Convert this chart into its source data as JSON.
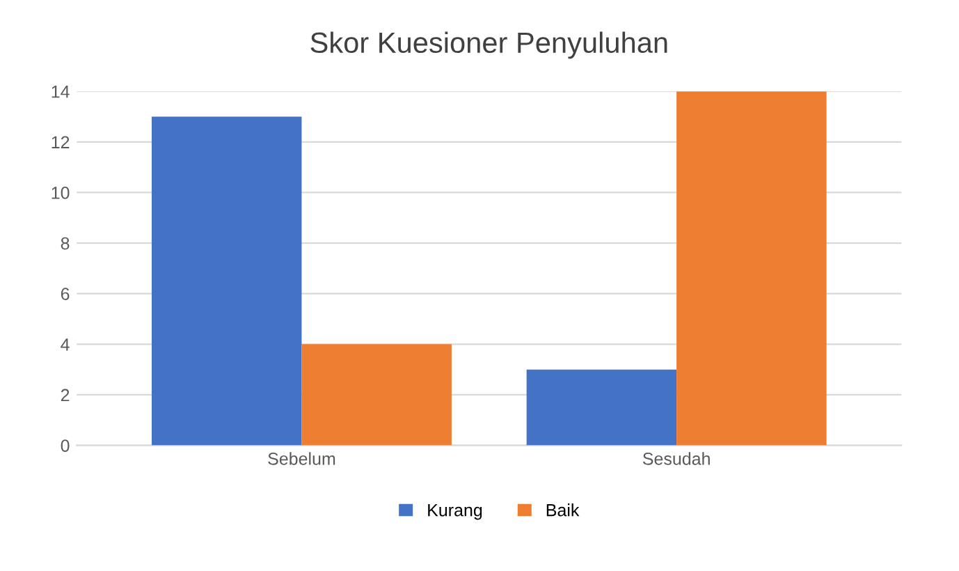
{
  "chart_data": {
    "type": "bar",
    "title": "Skor Kuesioner Penyuluhan",
    "categories": [
      "Sebelum",
      "Sesudah"
    ],
    "series": [
      {
        "name": "Kurang",
        "color": "#4472c4",
        "values": [
          13,
          3
        ]
      },
      {
        "name": "Baik",
        "color": "#ed7d31",
        "values": [
          4,
          14
        ]
      }
    ],
    "ylim": [
      0,
      14
    ],
    "yticks": [
      0,
      2,
      4,
      6,
      8,
      10,
      12,
      14
    ],
    "grid": "y",
    "legend": "bottom"
  }
}
